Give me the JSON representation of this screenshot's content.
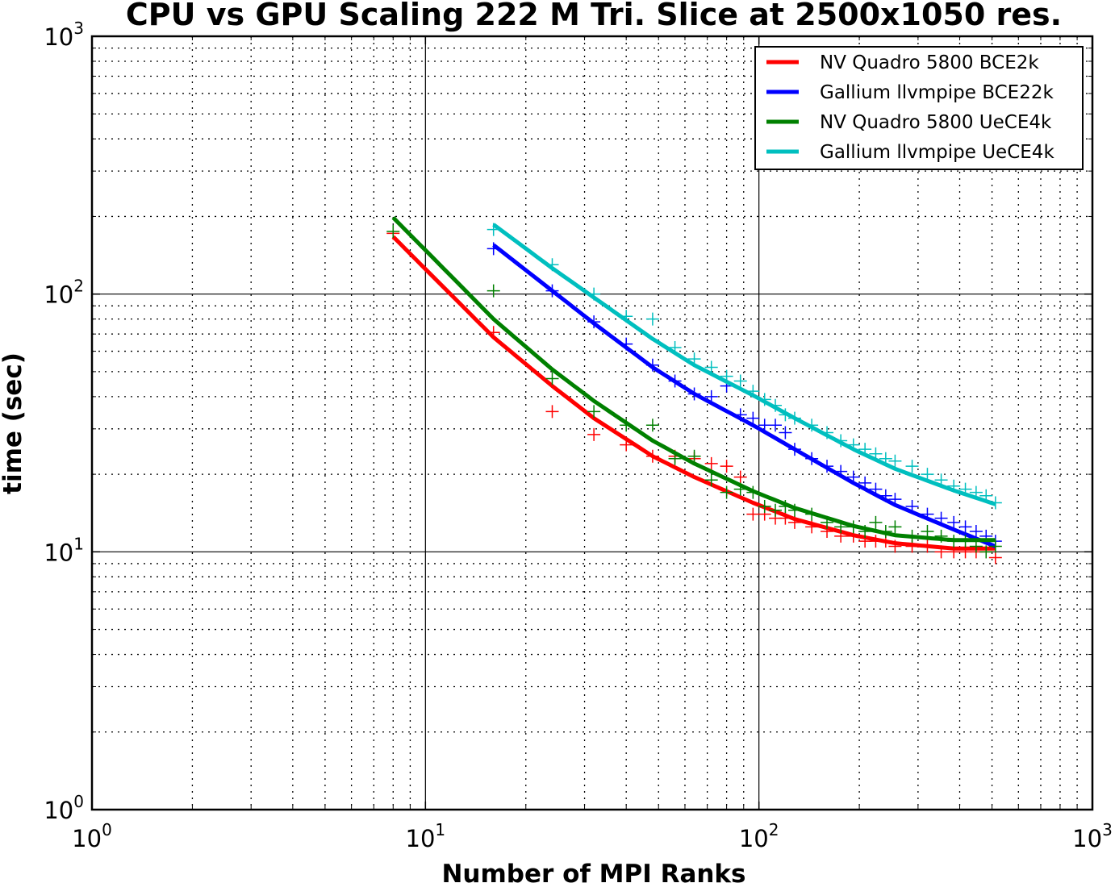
{
  "chart_data": {
    "type": "line",
    "title": "CPU vs GPU Scaling 222 M Tri. Slice at 2500x1050 res.",
    "xlabel": "Number of MPI Ranks",
    "ylabel": "time (sec)",
    "xscale": "log",
    "yscale": "log",
    "xlim": [
      1,
      1000
    ],
    "ylim": [
      1,
      1000
    ],
    "x_ticks": [
      {
        "base": "10",
        "exp": "0",
        "value": 1
      },
      {
        "base": "10",
        "exp": "1",
        "value": 10
      },
      {
        "base": "10",
        "exp": "2",
        "value": 100
      },
      {
        "base": "10",
        "exp": "3",
        "value": 1000
      }
    ],
    "y_ticks": [
      {
        "base": "10",
        "exp": "0",
        "value": 1
      },
      {
        "base": "10",
        "exp": "1",
        "value": 10
      },
      {
        "base": "10",
        "exp": "2",
        "value": 100
      },
      {
        "base": "10",
        "exp": "3",
        "value": 1000
      }
    ],
    "grid": "major solid, minor dotted",
    "legend_position": "top-right",
    "series": [
      {
        "name": "NV Quadro 5800 BCE2k",
        "color": "#ff0000",
        "fit": [
          [
            8,
            167
          ],
          [
            10,
            125
          ],
          [
            16,
            68
          ],
          [
            24,
            44
          ],
          [
            32,
            33
          ],
          [
            48,
            23.5
          ],
          [
            64,
            19.5
          ],
          [
            96,
            15.5
          ],
          [
            128,
            13.4
          ],
          [
            192,
            11.6
          ],
          [
            256,
            10.8
          ],
          [
            384,
            10.3
          ],
          [
            512,
            10.3
          ]
        ],
        "points": [
          [
            8,
            172
          ],
          [
            16,
            71
          ],
          [
            24,
            35
          ],
          [
            32,
            28.5
          ],
          [
            40,
            26
          ],
          [
            48,
            23.5
          ],
          [
            56,
            23.5
          ],
          [
            64,
            23
          ],
          [
            72,
            22
          ],
          [
            80,
            21.5
          ],
          [
            88,
            19.5
          ],
          [
            96,
            14
          ],
          [
            104,
            14
          ],
          [
            112,
            13.5
          ],
          [
            120,
            13.5
          ],
          [
            128,
            13
          ],
          [
            144,
            12.5
          ],
          [
            160,
            12
          ],
          [
            176,
            11.5
          ],
          [
            192,
            11.5
          ],
          [
            208,
            11
          ],
          [
            224,
            11
          ],
          [
            240,
            11
          ],
          [
            256,
            10.5
          ],
          [
            288,
            10.5
          ],
          [
            320,
            10.5
          ],
          [
            352,
            10
          ],
          [
            384,
            10
          ],
          [
            416,
            10
          ],
          [
            448,
            10
          ],
          [
            480,
            10
          ],
          [
            512,
            9.5
          ]
        ]
      },
      {
        "name": "Gallium llvmpipe BCE22k",
        "color": "#0000ff",
        "fit": [
          [
            16,
            155
          ],
          [
            24,
            103
          ],
          [
            32,
            77
          ],
          [
            48,
            52
          ],
          [
            64,
            41
          ],
          [
            96,
            31
          ],
          [
            128,
            25
          ],
          [
            192,
            18.5
          ],
          [
            256,
            15.2
          ],
          [
            384,
            12.2
          ],
          [
            512,
            10.5
          ]
        ],
        "points": [
          [
            16,
            150
          ],
          [
            24,
            103
          ],
          [
            32,
            78
          ],
          [
            40,
            64
          ],
          [
            48,
            53
          ],
          [
            56,
            46
          ],
          [
            64,
            41
          ],
          [
            72,
            40
          ],
          [
            80,
            44
          ],
          [
            88,
            34
          ],
          [
            96,
            33
          ],
          [
            104,
            31
          ],
          [
            112,
            31
          ],
          [
            120,
            29
          ],
          [
            128,
            25
          ],
          [
            144,
            23
          ],
          [
            160,
            21.5
          ],
          [
            176,
            20.5
          ],
          [
            192,
            19.5
          ],
          [
            208,
            18.5
          ],
          [
            224,
            17.5
          ],
          [
            240,
            16.5
          ],
          [
            256,
            16
          ],
          [
            288,
            15
          ],
          [
            320,
            14
          ],
          [
            352,
            13.5
          ],
          [
            384,
            13
          ],
          [
            416,
            12.5
          ],
          [
            448,
            12
          ],
          [
            480,
            11.5
          ],
          [
            512,
            11
          ]
        ]
      },
      {
        "name": "NV Quadro 5800 UeCE4k",
        "color": "#008000",
        "fit": [
          [
            8,
            198
          ],
          [
            10,
            148
          ],
          [
            16,
            80
          ],
          [
            24,
            51
          ],
          [
            32,
            38.5
          ],
          [
            48,
            27
          ],
          [
            64,
            22
          ],
          [
            96,
            17.2
          ],
          [
            128,
            14.8
          ],
          [
            192,
            12.6
          ],
          [
            256,
            11.6
          ],
          [
            384,
            11.1
          ],
          [
            512,
            11.1
          ]
        ],
        "points": [
          [
            8,
            175
          ],
          [
            16,
            103
          ],
          [
            24,
            47
          ],
          [
            32,
            35
          ],
          [
            40,
            31
          ],
          [
            48,
            31
          ],
          [
            56,
            23
          ],
          [
            64,
            23.5
          ],
          [
            72,
            19
          ],
          [
            80,
            17
          ],
          [
            88,
            17.5
          ],
          [
            96,
            17
          ],
          [
            104,
            15
          ],
          [
            112,
            14.5
          ],
          [
            120,
            15
          ],
          [
            128,
            14.5
          ],
          [
            144,
            14
          ],
          [
            160,
            13
          ],
          [
            176,
            12.5
          ],
          [
            192,
            12.5
          ],
          [
            208,
            12
          ],
          [
            224,
            13
          ],
          [
            240,
            12
          ],
          [
            256,
            12.5
          ],
          [
            288,
            11.5
          ],
          [
            320,
            12
          ],
          [
            352,
            11.5
          ],
          [
            384,
            11
          ],
          [
            416,
            11
          ],
          [
            448,
            10.5
          ],
          [
            480,
            10
          ],
          [
            512,
            10.5
          ]
        ]
      },
      {
        "name": "Gallium llvmpipe UeCE4k",
        "color": "#00bfbf",
        "fit": [
          [
            16,
            186
          ],
          [
            24,
            126
          ],
          [
            32,
            97
          ],
          [
            48,
            67
          ],
          [
            64,
            53
          ],
          [
            96,
            40.5
          ],
          [
            128,
            33
          ],
          [
            192,
            25
          ],
          [
            256,
            21
          ],
          [
            384,
            17.3
          ],
          [
            512,
            15.3
          ]
        ],
        "points": [
          [
            16,
            178
          ],
          [
            24,
            130
          ],
          [
            32,
            100
          ],
          [
            40,
            82
          ],
          [
            48,
            80
          ],
          [
            56,
            62
          ],
          [
            64,
            56
          ],
          [
            72,
            52
          ],
          [
            80,
            48
          ],
          [
            88,
            46
          ],
          [
            96,
            42
          ],
          [
            104,
            39
          ],
          [
            112,
            37
          ],
          [
            120,
            34
          ],
          [
            128,
            33
          ],
          [
            144,
            31
          ],
          [
            160,
            29
          ],
          [
            176,
            27
          ],
          [
            192,
            26
          ],
          [
            208,
            25
          ],
          [
            224,
            24
          ],
          [
            240,
            23
          ],
          [
            256,
            22.5
          ],
          [
            288,
            21.5
          ],
          [
            320,
            20
          ],
          [
            352,
            19
          ],
          [
            384,
            18
          ],
          [
            416,
            17.5
          ],
          [
            448,
            17
          ],
          [
            480,
            16.5
          ],
          [
            512,
            15.5
          ]
        ]
      }
    ]
  }
}
